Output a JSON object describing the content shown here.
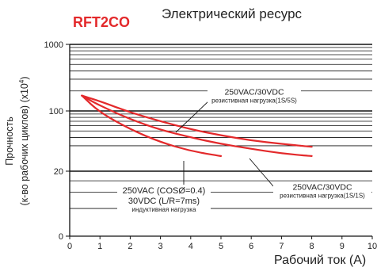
{
  "model": "RFT2CO",
  "chart_data": {
    "type": "line",
    "title": "Электрический ресурс",
    "xlabel": "Рабочий ток (А)",
    "ylabel_line1": "Прочность",
    "ylabel_line2_base": "(к-во рабочих циклов) (x10",
    "ylabel_line2_sup": "4",
    "ylabel_line2_end": ")",
    "x_ticks": [
      "0",
      "1",
      "2",
      "3",
      "4",
      "5",
      "6",
      "7",
      "8",
      "9",
      "10"
    ],
    "y_ticks": [
      "0",
      "20",
      "100",
      "1000"
    ],
    "xlim": [
      0,
      10
    ],
    "series": [
      {
        "x": [
          0.4,
          1,
          2,
          3,
          4,
          5,
          6,
          7,
          8
        ],
        "y": [
          170,
          140,
          95,
          70,
          53,
          43,
          36,
          32,
          29
        ]
      },
      {
        "x": [
          0.4,
          1,
          2,
          3,
          4,
          5,
          6,
          7,
          8
        ],
        "y": [
          170,
          120,
          75,
          52,
          40,
          32,
          27,
          23,
          21
        ]
      },
      {
        "x": [
          0.4,
          1,
          2,
          3,
          4,
          5
        ],
        "y": [
          170,
          95,
          53,
          34,
          25,
          21
        ]
      }
    ],
    "annotations": [
      {
        "id": "resistive_dc",
        "lines": [
          "250VAC/30VDC",
          "резистивная нагрузка(1S/5S)"
        ]
      },
      {
        "id": "resistive_ac",
        "lines": [
          "250VAC/30VDC",
          "резистивная нагрузка(1S/1S)"
        ]
      },
      {
        "id": "inductive",
        "lines": [
          "250VAC (COSØ=0.4)",
          "30VDC (L/R=7ms)",
          "индуктивная нагрузка"
        ]
      }
    ],
    "curve_color": "#e3292b",
    "grid": true
  }
}
